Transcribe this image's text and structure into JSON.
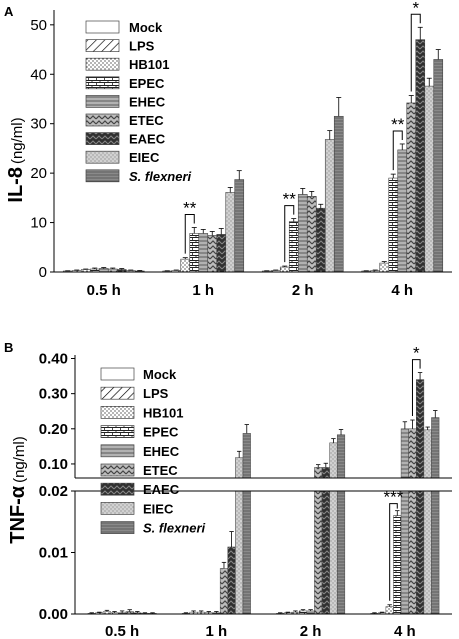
{
  "chart_data": [
    {
      "panel_label": "A",
      "type": "bar",
      "ylabel_main": "IL-8",
      "ylabel_unit": "(ng/ml)",
      "categories": [
        "0.5 h",
        "1 h",
        "2 h",
        "4 h"
      ],
      "yticks": [
        "0",
        "10",
        "20",
        "30",
        "40",
        "50"
      ],
      "ylim": [
        0,
        53
      ],
      "series": [
        {
          "name": "Mock",
          "pattern": "mock",
          "values": [
            0.2,
            0.2,
            0.2,
            0.2
          ],
          "errors": [
            0.05,
            0.05,
            0.05,
            0.05
          ]
        },
        {
          "name": "LPS",
          "pattern": "lps",
          "values": [
            0.3,
            0.3,
            0.3,
            0.3
          ],
          "errors": [
            0.1,
            0.1,
            0.1,
            0.1
          ]
        },
        {
          "name": "HB101",
          "pattern": "hb101",
          "values": [
            0.5,
            2.6,
            1.0,
            1.8
          ],
          "errors": [
            0.1,
            0.3,
            0.2,
            0.3
          ]
        },
        {
          "name": "EPEC",
          "pattern": "epec",
          "values": [
            0.6,
            7.8,
            10.2,
            19.0
          ],
          "errors": [
            0.2,
            1.2,
            0.6,
            0.8
          ]
        },
        {
          "name": "EHEC",
          "pattern": "ehec",
          "values": [
            0.7,
            7.8,
            15.7,
            24.7
          ],
          "errors": [
            0.2,
            0.8,
            1.2,
            1.2
          ]
        },
        {
          "name": "ETEC",
          "pattern": "etec",
          "values": [
            0.6,
            7.4,
            15.3,
            34.2
          ],
          "errors": [
            0.2,
            0.8,
            1.0,
            1.5
          ]
        },
        {
          "name": "EAEC",
          "pattern": "eaec",
          "values": [
            0.5,
            7.6,
            12.9,
            47.0
          ],
          "errors": [
            0.2,
            1.2,
            0.8,
            2.5
          ]
        },
        {
          "name": "EIEC",
          "pattern": "eiec",
          "values": [
            0.3,
            16.1,
            26.8,
            37.6
          ],
          "errors": [
            0.1,
            1.0,
            1.8,
            1.6
          ]
        },
        {
          "name": "S. flexneri",
          "pattern": "sflex",
          "values": [
            0.2,
            18.7,
            31.5,
            43.0
          ],
          "errors": [
            0.1,
            1.8,
            3.8,
            2.0
          ]
        }
      ],
      "significance": [
        {
          "category": "1 h",
          "from_series": 2,
          "to_series": 3,
          "label": "**"
        },
        {
          "category": "2 h",
          "from_series": 2,
          "to_series": 3,
          "label": "**"
        },
        {
          "category": "4 h",
          "from_series": 3,
          "to_series": 4,
          "label": "**"
        },
        {
          "category": "4 h",
          "from_series": 5,
          "to_series": 6,
          "label": "*"
        }
      ]
    },
    {
      "panel_label": "B",
      "type": "bar",
      "ylabel_main": "TNF-α",
      "ylabel_unit": "(ng/ml)",
      "categories": [
        "0.5 h",
        "1 h",
        "2 h",
        "4 h"
      ],
      "axis_break": true,
      "lower_range": [
        0,
        0.02
      ],
      "upper_range": [
        0.06,
        0.41
      ],
      "yticks_lower": [
        "0.00",
        "0.01",
        "0.02"
      ],
      "yticks_upper": [
        "0.10",
        "0.20",
        "0.30",
        "0.40"
      ],
      "series": [
        {
          "name": "Mock",
          "pattern": "mock",
          "values": [
            0.0001,
            0.0001,
            0.0001,
            0.0001
          ],
          "errors": [
            0.0001,
            0.0001,
            0.0001,
            0.0001
          ]
        },
        {
          "name": "LPS",
          "pattern": "lps",
          "values": [
            0.0002,
            0.0003,
            0.0002,
            0.0002
          ],
          "errors": [
            0.0001,
            0.0002,
            0.0001,
            0.0001
          ]
        },
        {
          "name": "HB101",
          "pattern": "hb101",
          "values": [
            0.0004,
            0.0003,
            0.0003,
            0.0012
          ],
          "errors": [
            0.0002,
            0.0002,
            0.0002,
            0.0003
          ]
        },
        {
          "name": "EPEC",
          "pattern": "epec",
          "values": [
            0.0002,
            0.0002,
            0.0005,
            0.016
          ],
          "errors": [
            0.0002,
            0.0002,
            0.0002,
            0.0008
          ]
        },
        {
          "name": "EHEC",
          "pattern": "ehec",
          "values": [
            0.0002,
            0.0002,
            0.0005,
            0.2
          ],
          "errors": [
            0.0003,
            0.0002,
            0.0002,
            0.02
          ]
        },
        {
          "name": "ETEC",
          "pattern": "etec",
          "values": [
            0.0004,
            0.0074,
            0.09,
            0.2
          ],
          "errors": [
            0.0003,
            0.001,
            0.008,
            0.025
          ]
        },
        {
          "name": "EAEC",
          "pattern": "eaec",
          "values": [
            0.0002,
            0.0109,
            0.09,
            0.34
          ],
          "errors": [
            0.0002,
            0.0025,
            0.012,
            0.02
          ]
        },
        {
          "name": "EIEC",
          "pattern": "eiec",
          "values": [
            0.0001,
            0.118,
            0.16,
            0.197
          ],
          "errors": [
            0.0001,
            0.018,
            0.012,
            0.008
          ]
        },
        {
          "name": "S. flexneri",
          "pattern": "sflex",
          "values": [
            0.0001,
            0.187,
            0.183,
            0.232
          ],
          "errors": [
            0.0001,
            0.025,
            0.015,
            0.02
          ]
        }
      ],
      "significance": [
        {
          "category": "4 h",
          "from_series": 5,
          "to_series": 6,
          "label": "*",
          "segment": "upper"
        },
        {
          "category": "4 h",
          "from_series": 2,
          "to_series": 3,
          "label": "***",
          "segment": "lower"
        }
      ]
    }
  ]
}
